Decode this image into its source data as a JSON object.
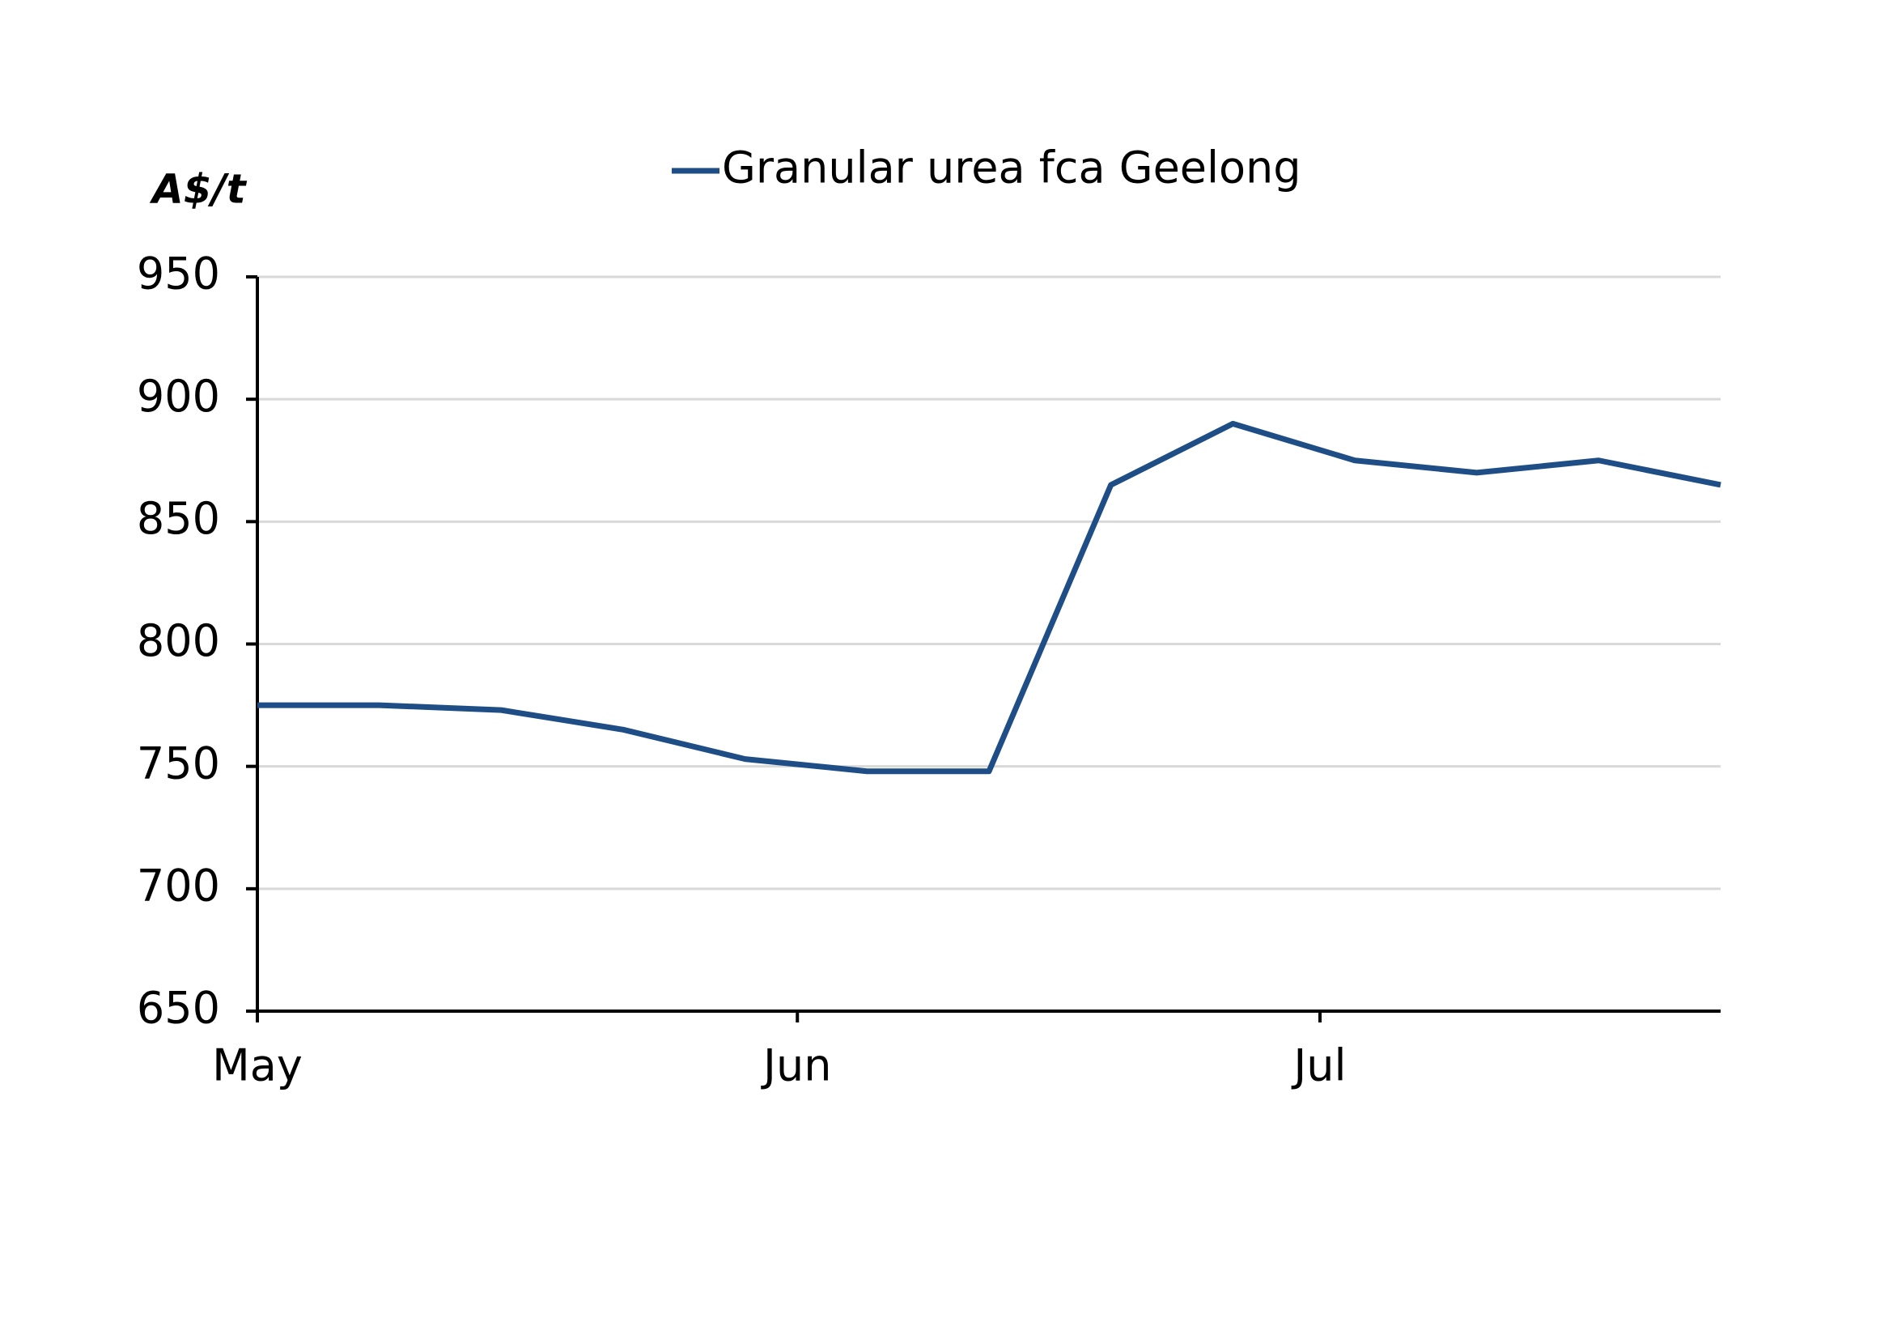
{
  "chart_data": {
    "type": "line",
    "y_label": "A$/t",
    "x": [
      0,
      7,
      14,
      21,
      28,
      35,
      42,
      49,
      56,
      63,
      70,
      77,
      84
    ],
    "xlim": [
      0,
      84
    ],
    "xticks": [
      {
        "value": 0,
        "label": "May"
      },
      {
        "value": 31,
        "label": "Jun"
      },
      {
        "value": 61,
        "label": "Jul"
      }
    ],
    "ylim": [
      650,
      950
    ],
    "yticks": [
      650,
      700,
      750,
      800,
      850,
      900,
      950
    ],
    "grid": true,
    "legend": "top",
    "series": [
      {
        "name": "Granular urea fca Geelong",
        "color": "#1f4e86",
        "values": [
          775,
          775,
          773,
          765,
          753,
          748,
          748,
          865,
          890,
          875,
          870,
          875,
          865
        ]
      }
    ]
  }
}
